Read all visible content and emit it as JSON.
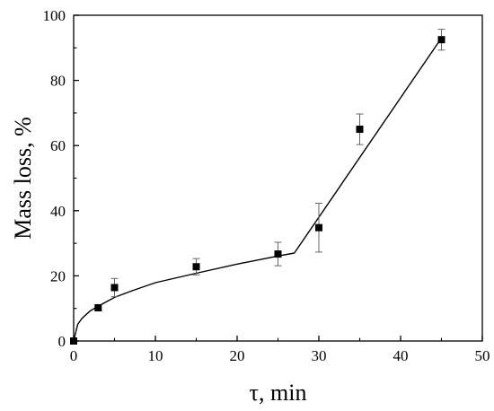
{
  "chart_data": {
    "type": "scatter",
    "title": "",
    "xlabel": "τ, min",
    "ylabel": "Mass loss, %",
    "xlim": [
      0,
      50
    ],
    "ylim": [
      0,
      100
    ],
    "xticks": [
      0,
      10,
      20,
      30,
      40,
      50
    ],
    "yticks": [
      0,
      20,
      40,
      60,
      80,
      100
    ],
    "grid": false,
    "legend": "none",
    "series": [
      {
        "marker": "square",
        "color": "#000000",
        "x": [
          0,
          3,
          5,
          15,
          25,
          30,
          35,
          45
        ],
        "y": [
          0,
          10.2,
          16.4,
          22.8,
          26.7,
          34.8,
          65.0,
          92.5
        ],
        "yerr": [
          0,
          0.8,
          2.8,
          2.5,
          3.6,
          7.5,
          4.7,
          3.2
        ]
      }
    ],
    "fit_lines": [
      {
        "kind": "power-law",
        "x_range": [
          0,
          27
        ],
        "points": [
          [
            0,
            0
          ],
          [
            0.5,
            5.1
          ],
          [
            1,
            6.9
          ],
          [
            2,
            9.2
          ],
          [
            3,
            10.7
          ],
          [
            5,
            13.4
          ],
          [
            7,
            15.3
          ],
          [
            10,
            17.9
          ],
          [
            15,
            20.8
          ],
          [
            20,
            23.6
          ],
          [
            25,
            26.1
          ],
          [
            27,
            27.0
          ]
        ]
      },
      {
        "kind": "linear",
        "x_range": [
          27,
          45
        ],
        "points": [
          [
            27,
            27.0
          ],
          [
            45,
            93.0
          ]
        ]
      }
    ]
  }
}
